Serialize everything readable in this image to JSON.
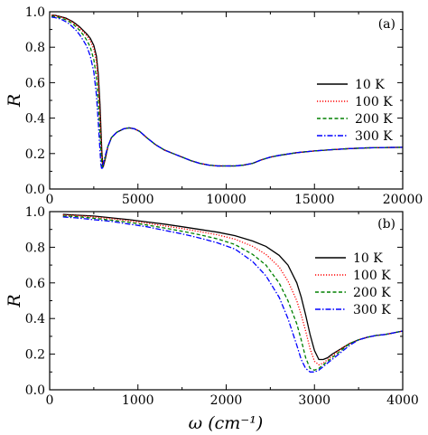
{
  "chart_data": [
    {
      "type": "line",
      "panel_label": "(a)",
      "ylabel": "R",
      "xlabel": "",
      "xlim": [
        0,
        20000
      ],
      "ylim": [
        0,
        1.0
      ],
      "x_ticks": [
        0,
        5000,
        10000,
        15000,
        20000
      ],
      "y_ticks": [
        0,
        0.2,
        0.4,
        0.6,
        0.8,
        1.0
      ],
      "x_tick_labels": [
        "0",
        "5000",
        "10000",
        "15000",
        "20000"
      ],
      "y_tick_labels": [
        "0.0",
        "0.2",
        "0.4",
        "0.6",
        "0.8",
        "1.0"
      ],
      "legend_position": "center-right",
      "series": [
        {
          "name": "10 K",
          "color": "#000000",
          "dash": "solid",
          "x": [
            100,
            300,
            500,
            700,
            900,
            1100,
            1300,
            1500,
            1700,
            1900,
            2100,
            2300,
            2500,
            2650,
            2750,
            2850,
            2900,
            2950,
            3000,
            3050,
            3150,
            3300,
            3500,
            3800,
            4200,
            4500,
            4800,
            5100,
            5500,
            6000,
            6500,
            7000,
            7500,
            8000,
            8500,
            9000,
            9500,
            10000,
            10500,
            11000,
            11500,
            12000,
            12500,
            13000,
            14000,
            15000,
            16000,
            17000,
            18000,
            19000,
            20000
          ],
          "y": [
            0.98,
            0.98,
            0.975,
            0.97,
            0.965,
            0.955,
            0.945,
            0.93,
            0.915,
            0.895,
            0.875,
            0.85,
            0.81,
            0.75,
            0.65,
            0.48,
            0.35,
            0.22,
            0.14,
            0.13,
            0.17,
            0.24,
            0.29,
            0.32,
            0.34,
            0.345,
            0.34,
            0.325,
            0.29,
            0.25,
            0.22,
            0.2,
            0.18,
            0.16,
            0.145,
            0.135,
            0.13,
            0.13,
            0.13,
            0.135,
            0.145,
            0.165,
            0.18,
            0.19,
            0.205,
            0.215,
            0.222,
            0.228,
            0.232,
            0.234,
            0.235
          ]
        },
        {
          "name": "100 K",
          "color": "#ff0000",
          "dash": "1.2,1.8",
          "x": [
            100,
            300,
            500,
            700,
            900,
            1100,
            1300,
            1500,
            1700,
            1900,
            2100,
            2300,
            2500,
            2650,
            2750,
            2850,
            2900,
            2950,
            3000,
            3050,
            3150,
            3300,
            3500,
            3800,
            4200,
            4500,
            4800,
            5100,
            5500,
            6000,
            6500,
            7000,
            7500,
            8000,
            8500,
            9000,
            9500,
            10000,
            10500,
            11000,
            11500,
            12000,
            12500,
            13000,
            14000,
            15000,
            16000,
            17000,
            18000,
            19000,
            20000
          ],
          "y": [
            0.98,
            0.978,
            0.973,
            0.968,
            0.962,
            0.952,
            0.94,
            0.925,
            0.908,
            0.888,
            0.865,
            0.835,
            0.79,
            0.72,
            0.6,
            0.42,
            0.3,
            0.19,
            0.13,
            0.13,
            0.17,
            0.24,
            0.29,
            0.32,
            0.34,
            0.345,
            0.34,
            0.325,
            0.29,
            0.25,
            0.22,
            0.2,
            0.18,
            0.16,
            0.145,
            0.135,
            0.13,
            0.13,
            0.13,
            0.135,
            0.145,
            0.165,
            0.18,
            0.19,
            0.205,
            0.215,
            0.222,
            0.228,
            0.232,
            0.234,
            0.235
          ]
        },
        {
          "name": "200 K",
          "color": "#008000",
          "dash": "4,2.5",
          "x": [
            100,
            300,
            500,
            700,
            900,
            1100,
            1300,
            1500,
            1700,
            1900,
            2100,
            2300,
            2500,
            2650,
            2750,
            2850,
            2900,
            2950,
            3000,
            3050,
            3150,
            3300,
            3500,
            3800,
            4200,
            4500,
            4800,
            5100,
            5500,
            6000,
            6500,
            7000,
            7500,
            8000,
            8500,
            9000,
            9500,
            10000,
            10500,
            11000,
            11500,
            12000,
            12500,
            13000,
            14000,
            15000,
            16000,
            17000,
            18000,
            19000,
            20000
          ],
          "y": [
            0.975,
            0.972,
            0.968,
            0.962,
            0.955,
            0.945,
            0.932,
            0.915,
            0.895,
            0.87,
            0.84,
            0.8,
            0.73,
            0.63,
            0.5,
            0.32,
            0.22,
            0.14,
            0.12,
            0.14,
            0.18,
            0.24,
            0.29,
            0.32,
            0.34,
            0.345,
            0.34,
            0.325,
            0.29,
            0.25,
            0.22,
            0.2,
            0.18,
            0.16,
            0.145,
            0.135,
            0.13,
            0.13,
            0.13,
            0.135,
            0.145,
            0.165,
            0.18,
            0.19,
            0.205,
            0.215,
            0.222,
            0.228,
            0.232,
            0.234,
            0.235
          ]
        },
        {
          "name": "300 K",
          "color": "#0000ff",
          "dash": "6,2,1.5,2",
          "x": [
            100,
            300,
            500,
            700,
            900,
            1100,
            1300,
            1500,
            1700,
            1900,
            2100,
            2300,
            2500,
            2650,
            2750,
            2850,
            2900,
            2950,
            3000,
            3050,
            3150,
            3300,
            3500,
            3800,
            4200,
            4500,
            4800,
            5100,
            5500,
            6000,
            6500,
            7000,
            7500,
            8000,
            8500,
            9000,
            9500,
            10000,
            10500,
            11000,
            11500,
            12000,
            12500,
            13000,
            14000,
            15000,
            16000,
            17000,
            18000,
            19000,
            20000
          ],
          "y": [
            0.97,
            0.967,
            0.962,
            0.955,
            0.945,
            0.932,
            0.915,
            0.895,
            0.87,
            0.84,
            0.805,
            0.75,
            0.66,
            0.53,
            0.38,
            0.22,
            0.14,
            0.11,
            0.12,
            0.15,
            0.19,
            0.24,
            0.29,
            0.32,
            0.34,
            0.345,
            0.34,
            0.325,
            0.29,
            0.25,
            0.22,
            0.2,
            0.18,
            0.16,
            0.145,
            0.135,
            0.13,
            0.13,
            0.13,
            0.135,
            0.145,
            0.165,
            0.18,
            0.19,
            0.205,
            0.215,
            0.222,
            0.228,
            0.232,
            0.234,
            0.235
          ]
        }
      ]
    },
    {
      "type": "line",
      "panel_label": "(b)",
      "ylabel": "R",
      "xlabel": "ω (cm⁻¹)",
      "xlim": [
        0,
        4000
      ],
      "ylim": [
        0,
        1.0
      ],
      "x_ticks": [
        0,
        1000,
        2000,
        3000,
        4000
      ],
      "y_ticks": [
        0,
        0.2,
        0.4,
        0.6,
        0.8,
        1.0
      ],
      "x_tick_labels": [
        "0",
        "1000",
        "2000",
        "3000",
        "4000"
      ],
      "y_tick_labels": [
        "0.0",
        "0.2",
        "0.4",
        "0.6",
        "0.8",
        "1.0"
      ],
      "legend_position": "right",
      "series": [
        {
          "name": "10 K",
          "color": "#000000",
          "dash": "solid",
          "x": [
            150,
            300,
            500,
            700,
            900,
            1100,
            1300,
            1500,
            1700,
            1900,
            2100,
            2300,
            2450,
            2600,
            2700,
            2800,
            2850,
            2900,
            2950,
            3000,
            3050,
            3100,
            3150,
            3200,
            3300,
            3400,
            3500,
            3600,
            3700,
            3800,
            3900,
            4000
          ],
          "y": [
            0.985,
            0.98,
            0.975,
            0.965,
            0.955,
            0.942,
            0.93,
            0.915,
            0.9,
            0.885,
            0.865,
            0.835,
            0.805,
            0.755,
            0.7,
            0.6,
            0.52,
            0.42,
            0.31,
            0.22,
            0.17,
            0.17,
            0.18,
            0.2,
            0.23,
            0.26,
            0.28,
            0.295,
            0.305,
            0.31,
            0.32,
            0.33
          ]
        },
        {
          "name": "100 K",
          "color": "#ff0000",
          "dash": "1.2,1.8",
          "x": [
            150,
            300,
            500,
            700,
            900,
            1100,
            1300,
            1500,
            1700,
            1900,
            2100,
            2300,
            2450,
            2600,
            2700,
            2800,
            2850,
            2900,
            2950,
            3000,
            3050,
            3100,
            3150,
            3200,
            3300,
            3400,
            3500,
            3600,
            3700,
            3800,
            3900,
            4000
          ],
          "y": [
            0.98,
            0.978,
            0.97,
            0.96,
            0.948,
            0.935,
            0.92,
            0.905,
            0.888,
            0.87,
            0.845,
            0.805,
            0.76,
            0.69,
            0.61,
            0.5,
            0.42,
            0.33,
            0.23,
            0.16,
            0.14,
            0.15,
            0.17,
            0.19,
            0.23,
            0.26,
            0.28,
            0.295,
            0.305,
            0.31,
            0.32,
            0.33
          ]
        },
        {
          "name": "200 K",
          "color": "#008000",
          "dash": "4,2.5",
          "x": [
            150,
            300,
            500,
            700,
            900,
            1100,
            1300,
            1500,
            1700,
            1900,
            2100,
            2300,
            2450,
            2600,
            2700,
            2800,
            2850,
            2900,
            2950,
            3000,
            3050,
            3100,
            3150,
            3200,
            3300,
            3400,
            3500,
            3600,
            3700,
            3800,
            3900,
            4000
          ],
          "y": [
            0.975,
            0.972,
            0.963,
            0.952,
            0.94,
            0.925,
            0.908,
            0.89,
            0.87,
            0.847,
            0.815,
            0.76,
            0.7,
            0.6,
            0.5,
            0.37,
            0.28,
            0.18,
            0.12,
            0.11,
            0.12,
            0.14,
            0.16,
            0.18,
            0.22,
            0.26,
            0.28,
            0.295,
            0.305,
            0.31,
            0.32,
            0.33
          ]
        },
        {
          "name": "300 K",
          "color": "#0000ff",
          "dash": "6,2,1.5,2",
          "x": [
            150,
            300,
            500,
            700,
            900,
            1100,
            1300,
            1500,
            1700,
            1900,
            2100,
            2300,
            2450,
            2600,
            2700,
            2800,
            2850,
            2900,
            2950,
            3000,
            3050,
            3100,
            3150,
            3200,
            3300,
            3400,
            3500,
            3600,
            3700,
            3800,
            3900,
            4000
          ],
          "y": [
            0.97,
            0.965,
            0.955,
            0.945,
            0.93,
            0.915,
            0.895,
            0.875,
            0.852,
            0.825,
            0.79,
            0.72,
            0.64,
            0.52,
            0.4,
            0.25,
            0.17,
            0.12,
            0.1,
            0.1,
            0.11,
            0.13,
            0.15,
            0.17,
            0.21,
            0.25,
            0.28,
            0.295,
            0.305,
            0.31,
            0.32,
            0.33
          ]
        }
      ]
    }
  ]
}
